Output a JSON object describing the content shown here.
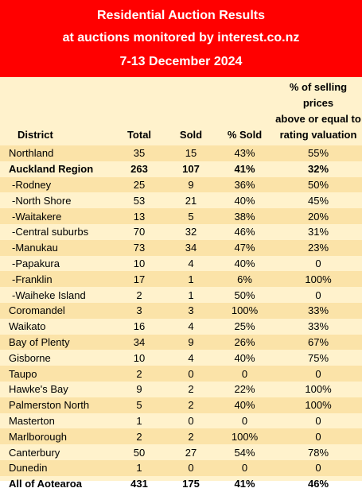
{
  "header": {
    "title_line1": "Residential Auction Results",
    "title_line2": "at auctions monitored by interest.co.nz",
    "date_range": "7-13 December 2024"
  },
  "colors": {
    "banner": "#ff0000",
    "table_background": "#fff2cc",
    "text": "#000000",
    "banner_text": "#ffffff"
  },
  "table": {
    "columns": {
      "district": "District",
      "total": "Total",
      "sold": "Sold",
      "pct_sold": "% Sold",
      "above_valuation_line1": "% of selling prices",
      "above_valuation_line2": "above or equal to",
      "above_valuation_line3": "rating valuation"
    },
    "rows": [
      {
        "district": "Northland",
        "total": "35",
        "sold": "15",
        "pct_sold": "43%",
        "above": "55%"
      },
      {
        "district": "Auckland Region",
        "total": "263",
        "sold": "107",
        "pct_sold": "41%",
        "above": "32%"
      },
      {
        "district": "-Rodney",
        "total": "25",
        "sold": "9",
        "pct_sold": "36%",
        "above": "50%"
      },
      {
        "district": "-North Shore",
        "total": "53",
        "sold": "21",
        "pct_sold": "40%",
        "above": "45%"
      },
      {
        "district": "-Waitakere",
        "total": "13",
        "sold": "5",
        "pct_sold": "38%",
        "above": "20%"
      },
      {
        "district": "-Central suburbs",
        "total": "70",
        "sold": "32",
        "pct_sold": "46%",
        "above": "31%"
      },
      {
        "district": "-Manukau",
        "total": "73",
        "sold": "34",
        "pct_sold": "47%",
        "above": "23%"
      },
      {
        "district": "-Papakura",
        "total": "10",
        "sold": "4",
        "pct_sold": "40%",
        "above": "0"
      },
      {
        "district": "-Franklin",
        "total": "17",
        "sold": "1",
        "pct_sold": "6%",
        "above": "100%"
      },
      {
        "district": "-Waiheke Island",
        "total": "2",
        "sold": "1",
        "pct_sold": "50%",
        "above": "0"
      },
      {
        "district": "Coromandel",
        "total": "3",
        "sold": "3",
        "pct_sold": "100%",
        "above": "33%"
      },
      {
        "district": "Waikato",
        "total": "16",
        "sold": "4",
        "pct_sold": "25%",
        "above": "33%"
      },
      {
        "district": "Bay of Plenty",
        "total": "34",
        "sold": "9",
        "pct_sold": "26%",
        "above": "67%"
      },
      {
        "district": "Gisborne",
        "total": "10",
        "sold": "4",
        "pct_sold": "40%",
        "above": "75%"
      },
      {
        "district": "Taupo",
        "total": "2",
        "sold": "0",
        "pct_sold": "0",
        "above": "0"
      },
      {
        "district": "Hawke's Bay",
        "total": "9",
        "sold": "2",
        "pct_sold": "22%",
        "above": "100%"
      },
      {
        "district": "Palmerston North",
        "total": "5",
        "sold": "2",
        "pct_sold": "40%",
        "above": "100%"
      },
      {
        "district": "Masterton",
        "total": "1",
        "sold": "0",
        "pct_sold": "0",
        "above": "0"
      },
      {
        "district": "Marlborough",
        "total": "2",
        "sold": "2",
        "pct_sold": "100%",
        "above": "0"
      },
      {
        "district": "Canterbury",
        "total": "50",
        "sold": "27",
        "pct_sold": "54%",
        "above": "78%"
      },
      {
        "district": "Dunedin",
        "total": "1",
        "sold": "0",
        "pct_sold": "0",
        "above": "0"
      },
      {
        "district": "All of Aotearoa",
        "total": "431",
        "sold": "175",
        "pct_sold": "41%",
        "above": "46%"
      }
    ]
  }
}
